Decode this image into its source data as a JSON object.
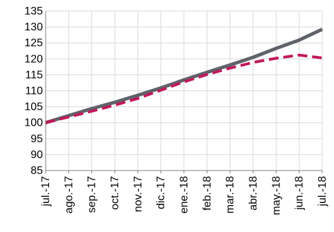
{
  "chart_data": {
    "type": "line",
    "title": "",
    "subtitle": "",
    "xlabel": "",
    "ylabel": "",
    "categories": [
      "jul.-17",
      "ago.-17",
      "sep.-17",
      "oct.-17",
      "nov.-17",
      "dic.-17",
      "ene.-18",
      "feb.-18",
      "mar.-18",
      "abr.-18",
      "may.-18",
      "jun.-18",
      "jul.-18"
    ],
    "ylim": [
      85,
      135
    ],
    "yticks": [
      85,
      90,
      95,
      100,
      105,
      110,
      115,
      120,
      125,
      130,
      135
    ],
    "grid": true,
    "legend": "none",
    "series": [
      {
        "style": "solid",
        "color": "#5f6369",
        "values": [
          100,
          102.2,
          104.4,
          106.4,
          108.6,
          110.9,
          113.4,
          115.8,
          118.1,
          120.5,
          123.3,
          125.9,
          129.3
        ]
      },
      {
        "style": "dashed",
        "color": "#c2185b",
        "values": [
          100,
          101.8,
          103.6,
          105.5,
          107.6,
          110.2,
          112.8,
          115.1,
          117.1,
          118.9,
          120.2,
          121.2,
          120.3
        ]
      }
    ]
  }
}
